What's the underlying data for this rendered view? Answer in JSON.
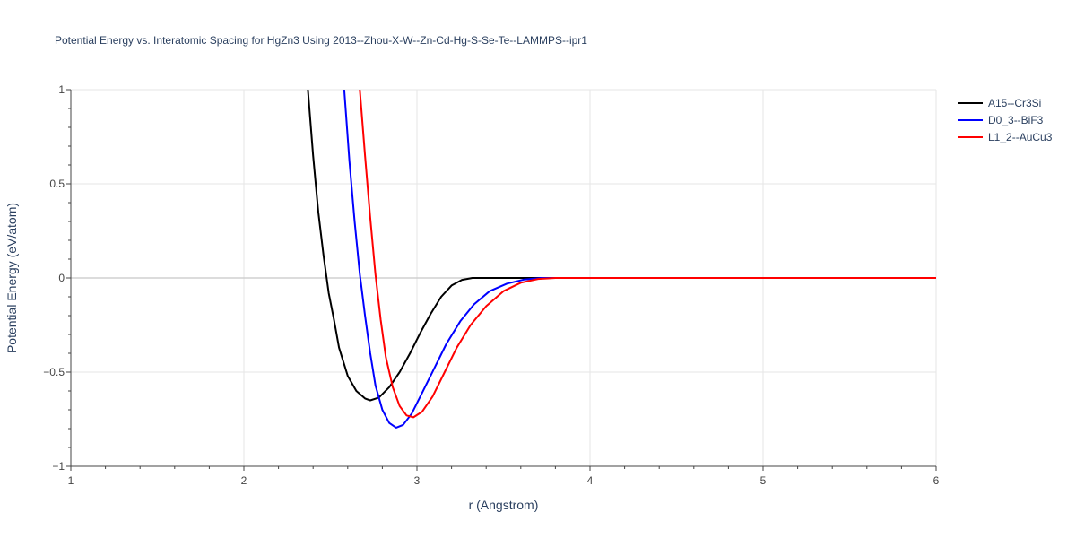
{
  "chart_data": {
    "type": "line",
    "title": "Potential Energy vs. Interatomic Spacing for HgZn3 Using 2013--Zhou-X-W--Zn-Cd-Hg-S-Se-Te--LAMMPS--ipr1",
    "xlabel": "r (Angstrom)",
    "ylabel": "Potential Energy (eV/atom)",
    "xlim": [
      1,
      6
    ],
    "ylim": [
      -1,
      1
    ],
    "x_ticks": [
      "1",
      "2",
      "3",
      "4",
      "5",
      "6"
    ],
    "y_ticks": [
      "−1",
      "−0.5",
      "0",
      "0.5",
      "1"
    ],
    "grid": true,
    "legend_position": "top-right",
    "series": [
      {
        "name": "A15--Cr3Si",
        "color": "#000000",
        "points": [
          [
            2.37,
            1.0
          ],
          [
            2.4,
            0.65
          ],
          [
            2.43,
            0.35
          ],
          [
            2.46,
            0.12
          ],
          [
            2.49,
            -0.08
          ],
          [
            2.52,
            -0.22
          ],
          [
            2.55,
            -0.37
          ],
          [
            2.6,
            -0.52
          ],
          [
            2.65,
            -0.6
          ],
          [
            2.7,
            -0.64
          ],
          [
            2.73,
            -0.65
          ],
          [
            2.78,
            -0.635
          ],
          [
            2.84,
            -0.58
          ],
          [
            2.9,
            -0.5
          ],
          [
            2.96,
            -0.4
          ],
          [
            3.02,
            -0.29
          ],
          [
            3.08,
            -0.19
          ],
          [
            3.14,
            -0.1
          ],
          [
            3.2,
            -0.04
          ],
          [
            3.26,
            -0.01
          ],
          [
            3.32,
            0.0
          ],
          [
            3.5,
            0.0
          ],
          [
            4.0,
            0.0
          ],
          [
            5.0,
            0.0
          ],
          [
            6.0,
            0.0
          ]
        ]
      },
      {
        "name": "D0_3--BiF3",
        "color": "#0000ff",
        "points": [
          [
            2.58,
            1.0
          ],
          [
            2.61,
            0.62
          ],
          [
            2.64,
            0.3
          ],
          [
            2.67,
            0.02
          ],
          [
            2.7,
            -0.2
          ],
          [
            2.73,
            -0.4
          ],
          [
            2.76,
            -0.57
          ],
          [
            2.8,
            -0.7
          ],
          [
            2.84,
            -0.77
          ],
          [
            2.88,
            -0.795
          ],
          [
            2.92,
            -0.78
          ],
          [
            2.97,
            -0.72
          ],
          [
            3.03,
            -0.61
          ],
          [
            3.1,
            -0.48
          ],
          [
            3.17,
            -0.35
          ],
          [
            3.25,
            -0.23
          ],
          [
            3.33,
            -0.14
          ],
          [
            3.42,
            -0.07
          ],
          [
            3.52,
            -0.03
          ],
          [
            3.62,
            -0.008
          ],
          [
            3.72,
            0.0
          ],
          [
            4.0,
            0.0
          ],
          [
            5.0,
            0.0
          ],
          [
            6.0,
            0.0
          ]
        ]
      },
      {
        "name": "L1_2--AuCu3",
        "color": "#ff0000",
        "points": [
          [
            2.67,
            1.0
          ],
          [
            2.7,
            0.65
          ],
          [
            2.73,
            0.32
          ],
          [
            2.76,
            0.02
          ],
          [
            2.79,
            -0.22
          ],
          [
            2.82,
            -0.42
          ],
          [
            2.86,
            -0.58
          ],
          [
            2.9,
            -0.68
          ],
          [
            2.94,
            -0.73
          ],
          [
            2.98,
            -0.74
          ],
          [
            3.03,
            -0.71
          ],
          [
            3.09,
            -0.63
          ],
          [
            3.16,
            -0.5
          ],
          [
            3.23,
            -0.37
          ],
          [
            3.31,
            -0.25
          ],
          [
            3.4,
            -0.15
          ],
          [
            3.5,
            -0.07
          ],
          [
            3.6,
            -0.025
          ],
          [
            3.7,
            -0.005
          ],
          [
            3.8,
            0.0
          ],
          [
            4.0,
            0.0
          ],
          [
            5.0,
            0.0
          ],
          [
            6.0,
            0.0
          ]
        ]
      }
    ]
  }
}
